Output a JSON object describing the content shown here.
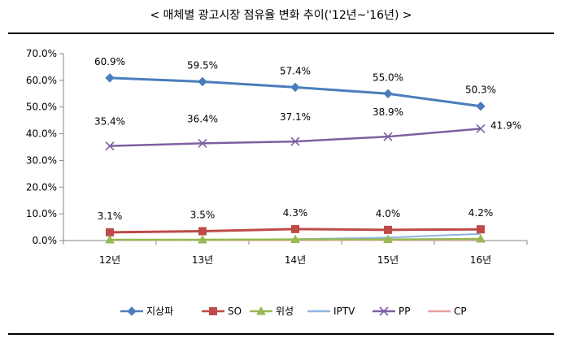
{
  "chart_data": {
    "type": "line",
    "title": "< 매체별 광고시장 점유율 변화 추이('12년~'16년) >",
    "categories": [
      "12년",
      "13년",
      "14년",
      "15년",
      "16년"
    ],
    "ylim": [
      0,
      70
    ],
    "yticks": [
      "0.0%",
      "10.0%",
      "20.0%",
      "30.0%",
      "40.0%",
      "50.0%",
      "60.0%",
      "70.0%"
    ],
    "ytick_values": [
      0,
      10,
      20,
      30,
      40,
      50,
      60,
      70
    ],
    "grid": false,
    "legend": "bottom",
    "series": [
      {
        "name": "지상파",
        "values": [
          60.9,
          59.5,
          57.4,
          55.0,
          50.3
        ],
        "labels": [
          "60.9%",
          "59.5%",
          "57.4%",
          "55.0%",
          "50.3%"
        ],
        "color": "#4a7ebb",
        "marker": "diamond"
      },
      {
        "name": "SO",
        "values": [
          3.1,
          3.5,
          4.3,
          4.0,
          4.2
        ],
        "labels": [
          "3.1%",
          "3.5%",
          "4.3%",
          "4.0%",
          "4.2%"
        ],
        "color": "#be4b48",
        "marker": "square"
      },
      {
        "name": "위성",
        "values": [
          0.3,
          0.3,
          0.4,
          0.4,
          0.6
        ],
        "labels": [],
        "color": "#98b954",
        "marker": "triangle"
      },
      {
        "name": "IPTV",
        "values": [
          0.2,
          0.3,
          0.5,
          1.1,
          2.5
        ],
        "labels": [],
        "color": "#8eb4e3",
        "marker": "none"
      },
      {
        "name": "PP",
        "values": [
          35.4,
          36.4,
          37.1,
          38.9,
          41.9
        ],
        "labels": [
          "35.4%",
          "36.4%",
          "37.1%",
          "38.9%",
          "41.9%"
        ],
        "color": "#7d60a0",
        "marker": "x"
      },
      {
        "name": "CP",
        "values": [
          0.1,
          0.1,
          0.1,
          0.2,
          0.3
        ],
        "labels": [],
        "color": "#e6a09e",
        "marker": "none"
      }
    ]
  }
}
